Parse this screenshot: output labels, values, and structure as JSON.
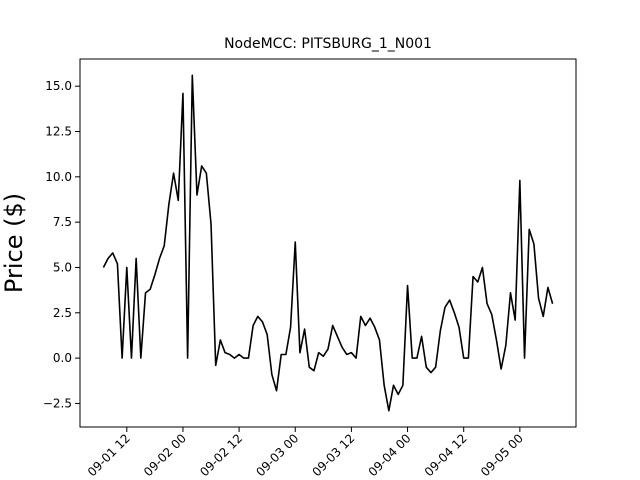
{
  "chart_data": {
    "type": "line",
    "title": "NodeMCC: PITSBURG_1_N001",
    "y_label": "Price ($)",
    "x": [
      "09-01 07",
      "09-01 08",
      "09-01 09",
      "09-01 10",
      "09-01 11",
      "09-01 12",
      "09-01 13",
      "09-01 14",
      "09-01 15",
      "09-01 16",
      "09-01 17",
      "09-01 18",
      "09-01 19",
      "09-01 20",
      "09-01 21",
      "09-01 22",
      "09-01 23",
      "09-02 00",
      "09-02 01",
      "09-02 02",
      "09-02 03",
      "09-02 04",
      "09-02 05",
      "09-02 06",
      "09-02 07",
      "09-02 08",
      "09-02 09",
      "09-02 10",
      "09-02 11",
      "09-02 12",
      "09-02 13",
      "09-02 14",
      "09-02 15",
      "09-02 16",
      "09-02 17",
      "09-02 18",
      "09-02 19",
      "09-02 20",
      "09-02 21",
      "09-02 22",
      "09-02 23",
      "09-03 00",
      "09-03 01",
      "09-03 02",
      "09-03 03",
      "09-03 04",
      "09-03 05",
      "09-03 06",
      "09-03 07",
      "09-03 08",
      "09-03 09",
      "09-03 10",
      "09-03 11",
      "09-03 12",
      "09-03 13",
      "09-03 14",
      "09-03 15",
      "09-03 16",
      "09-03 17",
      "09-03 18",
      "09-03 19",
      "09-03 20",
      "09-03 21",
      "09-03 22",
      "09-03 23",
      "09-04 00",
      "09-04 01",
      "09-04 02",
      "09-04 03",
      "09-04 04",
      "09-04 05",
      "09-04 06",
      "09-04 07",
      "09-04 08",
      "09-04 09",
      "09-04 10",
      "09-04 11",
      "09-04 12",
      "09-04 13",
      "09-04 14",
      "09-04 15",
      "09-04 16",
      "09-04 17",
      "09-04 18",
      "09-04 19",
      "09-04 20",
      "09-04 21",
      "09-04 22",
      "09-04 23",
      "09-05 00",
      "09-05 01",
      "09-05 02",
      "09-05 03",
      "09-05 04",
      "09-05 05",
      "09-05 06",
      "09-05 07"
    ],
    "series": [
      {
        "name": "NodeMCC",
        "color": "#000000",
        "values": [
          5.0,
          5.5,
          5.8,
          5.2,
          0,
          5.0,
          0,
          5.5,
          0,
          3.6,
          3.8,
          4.6,
          5.5,
          6.2,
          8.5,
          10.2,
          8.7,
          14.6,
          0,
          15.6,
          9.0,
          10.6,
          10.2,
          7.4,
          -0.4,
          1.0,
          0.3,
          0.2,
          0.0,
          0.2,
          0.0,
          0.0,
          1.8,
          2.3,
          2.0,
          1.3,
          -0.9,
          -1.8,
          0.2,
          0.2,
          1.7,
          6.4,
          0.3,
          1.6,
          -0.5,
          -0.7,
          0.3,
          0.1,
          0.5,
          1.8,
          1.2,
          0.6,
          0.2,
          0.3,
          0.0,
          2.3,
          1.8,
          2.2,
          1.7,
          1.0,
          -1.5,
          -2.9,
          -1.5,
          -2.0,
          -1.5,
          4.0,
          0.0,
          0.0,
          1.2,
          -0.5,
          -0.8,
          -0.5,
          1.5,
          2.8,
          3.2,
          2.5,
          1.7,
          0.0,
          0.0,
          4.5,
          4.2,
          5.0,
          3.0,
          2.4,
          1.0,
          -0.6,
          0.7,
          3.6,
          2.1,
          9.8,
          0.0,
          7.1,
          6.3,
          3.3,
          2.3,
          3.9,
          3.0
        ]
      }
    ],
    "xlim": [
      "09-01 02",
      "09-05 12"
    ],
    "xticks": [
      "09-01 12",
      "09-02 00",
      "09-02 12",
      "09-03 00",
      "09-03 12",
      "09-04 00",
      "09-04 12",
      "09-05 00"
    ],
    "ylim": [
      -3.8,
      16.5
    ],
    "yticks": [
      {
        "value": -2.5,
        "label": "−2.5"
      },
      {
        "value": 0,
        "label": "0.0"
      },
      2.5,
      {
        "value": 5,
        "label": "5.0"
      },
      7.5,
      {
        "value": 10,
        "label": "10.0"
      },
      12.5,
      {
        "value": 15,
        "label": "15.0"
      }
    ]
  }
}
